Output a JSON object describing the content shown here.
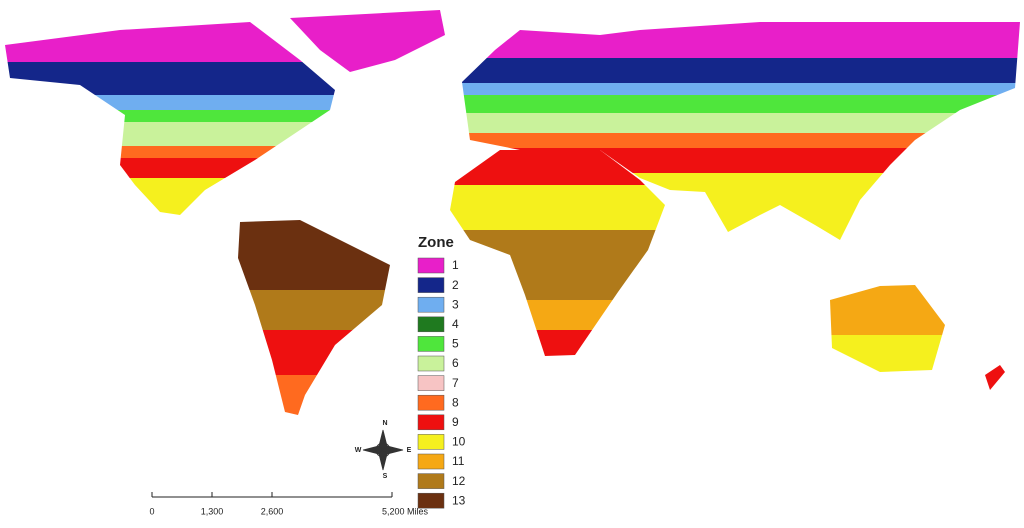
{
  "legend": {
    "title": "Zone",
    "items": [
      {
        "label": "1",
        "color": "#e81fc9"
      },
      {
        "label": "2",
        "color": "#14268a"
      },
      {
        "label": "3",
        "color": "#6faef0"
      },
      {
        "label": "4",
        "color": "#1f7a1f"
      },
      {
        "label": "5",
        "color": "#4fe63c"
      },
      {
        "label": "6",
        "color": "#c9f29b"
      },
      {
        "label": "7",
        "color": "#f7c4c4"
      },
      {
        "label": "8",
        "color": "#ff6a1f"
      },
      {
        "label": "9",
        "color": "#ee1010"
      },
      {
        "label": "10",
        "color": "#f5f01e"
      },
      {
        "label": "11",
        "color": "#f5a814"
      },
      {
        "label": "12",
        "color": "#b07a1a"
      },
      {
        "label": "13",
        "color": "#6b3010"
      }
    ]
  },
  "scale_bar": {
    "ticks": [
      {
        "value": 0,
        "label": "0"
      },
      {
        "value": 1300,
        "label": "1,300"
      },
      {
        "value": 2600,
        "label": "2,600"
      },
      {
        "value": 5200,
        "label": "5,200 Miles"
      }
    ]
  },
  "compass": {
    "north": "N",
    "east": "E",
    "south": "S",
    "west": "W"
  }
}
